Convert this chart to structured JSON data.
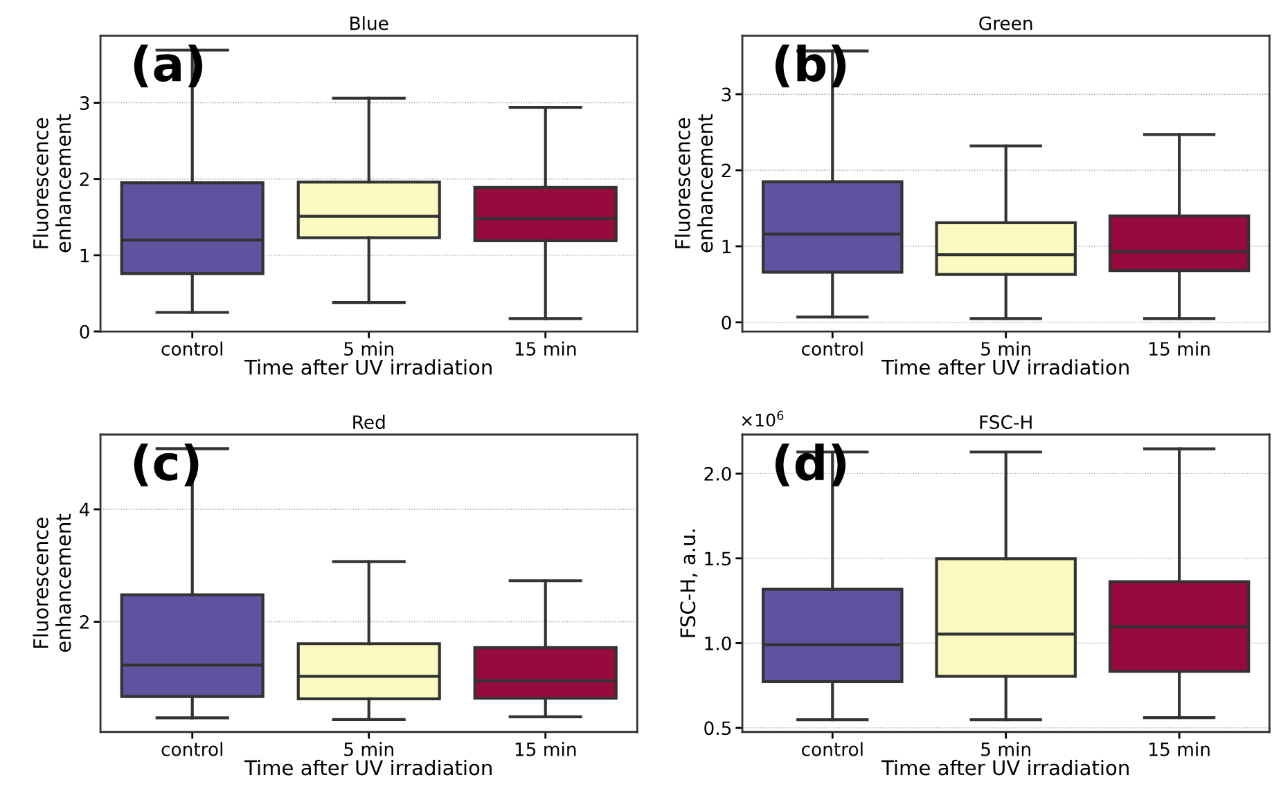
{
  "chart_data": [
    {
      "type": "box",
      "title": "Blue",
      "xlabel": "Time after UV irradiation",
      "ylabel": "Fluorescence\nenhancement",
      "categories": [
        "control",
        "5 min",
        "15 min"
      ],
      "colors": [
        "#5f529e",
        "#fbfac0",
        "#960a3f"
      ],
      "boxes": [
        {
          "low": 0.25,
          "q1": 0.76,
          "median": 1.2,
          "q3": 1.95,
          "high": 3.69
        },
        {
          "low": 0.38,
          "q1": 1.23,
          "median": 1.51,
          "q3": 1.96,
          "high": 3.06
        },
        {
          "low": 0.17,
          "q1": 1.19,
          "median": 1.48,
          "q3": 1.89,
          "high": 2.94
        }
      ],
      "ylim": [
        0,
        3.88
      ],
      "yticks": [
        0,
        1,
        2,
        3
      ],
      "grid": "y",
      "annotations": [
        "(a)"
      ]
    },
    {
      "type": "box",
      "title": "Green",
      "xlabel": "Time after UV irradiation",
      "ylabel": "Fluorescence\nenhancement",
      "categories": [
        "control",
        "5 min",
        "15 min"
      ],
      "colors": [
        "#5f529e",
        "#fbfac0",
        "#960a3f"
      ],
      "boxes": [
        {
          "low": 0.07,
          "q1": 0.66,
          "median": 1.16,
          "q3": 1.85,
          "high": 3.57
        },
        {
          "low": 0.05,
          "q1": 0.63,
          "median": 0.89,
          "q3": 1.31,
          "high": 2.32
        },
        {
          "low": 0.05,
          "q1": 0.68,
          "median": 0.93,
          "q3": 1.4,
          "high": 2.47
        }
      ],
      "ylim": [
        -0.12,
        3.77
      ],
      "yticks": [
        0,
        1,
        2,
        3
      ],
      "grid": "y",
      "annotations": [
        "(b)"
      ]
    },
    {
      "type": "box",
      "title": "Red",
      "xlabel": "Time after UV irradiation",
      "ylabel": "Fluorescence\nenhancement",
      "categories": [
        "control",
        "5 min",
        "15 min"
      ],
      "colors": [
        "#5f529e",
        "#fbfac0",
        "#960a3f"
      ],
      "boxes": [
        {
          "low": 0.29,
          "q1": 0.67,
          "median": 1.23,
          "q3": 2.48,
          "high": 5.08
        },
        {
          "low": 0.26,
          "q1": 0.63,
          "median": 1.03,
          "q3": 1.61,
          "high": 3.07
        },
        {
          "low": 0.31,
          "q1": 0.64,
          "median": 0.95,
          "q3": 1.54,
          "high": 2.73
        }
      ],
      "ylim": [
        0.04,
        5.33
      ],
      "yticks": [
        2,
        4
      ],
      "grid": "y",
      "annotations": [
        "(c)"
      ]
    },
    {
      "type": "box",
      "title": "FSC-H",
      "xlabel": "Time after UV irradiation",
      "ylabel": "FSC-H, a.u.",
      "categories": [
        "control",
        "5 min",
        "15 min"
      ],
      "colors": [
        "#5f529e",
        "#fbfac0",
        "#960a3f"
      ],
      "boxes": [
        {
          "low": 0.548,
          "q1": 0.773,
          "median": 0.99,
          "q3": 1.317,
          "high": 2.127
        },
        {
          "low": 0.548,
          "q1": 0.804,
          "median": 1.053,
          "q3": 1.498,
          "high": 2.127
        },
        {
          "low": 0.56,
          "q1": 0.833,
          "median": 1.097,
          "q3": 1.362,
          "high": 2.146
        }
      ],
      "ylim": [
        0.476,
        2.23
      ],
      "yticks": [
        {
          "value": 0.5,
          "label": "0.5"
        },
        {
          "value": 1.0,
          "label": "1.0"
        },
        {
          "value": 1.5,
          "label": "1.5"
        },
        {
          "value": 2.0,
          "label": "2.0"
        }
      ],
      "grid": "y",
      "annotations": [
        "(d)",
        "×10$^{6}$"
      ]
    }
  ]
}
